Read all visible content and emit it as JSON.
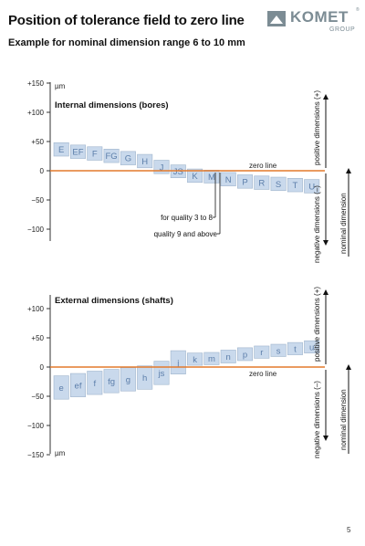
{
  "header": {
    "title": "Position of tolerance field to zero line",
    "subtitle": "Example for nominal dimension range 6 to 10 mm",
    "logo_text": "KOMET",
    "logo_sub": "GROUP",
    "logo_registered": "®"
  },
  "colors": {
    "field_fill": "#c9d9ec",
    "field_stroke": "#9fb4cc",
    "field_letter": "#5c7eaa",
    "zero_line": "#e47a2c",
    "axis": "#333333"
  },
  "top_diagram": {
    "section_title": "Internal dimensions (bores)",
    "unit": "µm",
    "ticks": [
      "+150",
      "+100",
      "+50",
      "0",
      "−50",
      "−100"
    ],
    "tick_values": [
      150,
      100,
      50,
      0,
      -50,
      -100
    ],
    "zero_line_label": "zero line",
    "fields": [
      {
        "letter": "E",
        "hi": 48,
        "lo": 25
      },
      {
        "letter": "EF",
        "hi": 44,
        "lo": 21
      },
      {
        "letter": "F",
        "hi": 41,
        "lo": 18
      },
      {
        "letter": "FG",
        "hi": 37,
        "lo": 14
      },
      {
        "letter": "G",
        "hi": 33,
        "lo": 10
      },
      {
        "letter": "H",
        "hi": 28,
        "lo": 5
      },
      {
        "letter": "J",
        "hi": 18,
        "lo": -5
      },
      {
        "letter": "JS",
        "hi": 10,
        "lo": -12
      },
      {
        "letter": "K",
        "hi": 3,
        "lo": -20
      },
      {
        "letter": "M",
        "hi": 1,
        "lo": -21
      },
      {
        "letter": "N",
        "hi": -3,
        "lo": -26
      },
      {
        "letter": "P",
        "hi": -7,
        "lo": -30
      },
      {
        "letter": "R",
        "hi": -9,
        "lo": -32
      },
      {
        "letter": "S",
        "hi": -11,
        "lo": -34
      },
      {
        "letter": "T",
        "hi": -13,
        "lo": -36
      },
      {
        "letter": "U",
        "hi": -15,
        "lo": -38
      }
    ],
    "quality_labels": [
      "for quality 3 to 8",
      "quality 9 and above"
    ],
    "side_labels": {
      "positive": "positive dimensions (+)",
      "negative": "negative dimensions (–)",
      "nominal": "nominal dimension"
    }
  },
  "bottom_diagram": {
    "section_title": "External dimensions (shafts)",
    "unit": "µm",
    "ticks": [
      "+100",
      "+50",
      "0",
      "−50",
      "−100",
      "−150"
    ],
    "tick_values": [
      100,
      50,
      0,
      -50,
      -100,
      -150
    ],
    "zero_line_label": "zero line",
    "fields": [
      {
        "letter": "e",
        "hi": -15,
        "lo": -55
      },
      {
        "letter": "ef",
        "hi": -11,
        "lo": -51
      },
      {
        "letter": "f",
        "hi": -7,
        "lo": -47
      },
      {
        "letter": "fg",
        "hi": -4,
        "lo": -44
      },
      {
        "letter": "g",
        "hi": -1,
        "lo": -41
      },
      {
        "letter": "h",
        "hi": 2,
        "lo": -38
      },
      {
        "letter": "js",
        "hi": 10,
        "lo": -30
      },
      {
        "letter": "j",
        "hi": 28,
        "lo": -12
      },
      {
        "letter": "k",
        "hi": 24,
        "lo": 3
      },
      {
        "letter": "m",
        "hi": 25,
        "lo": 4
      },
      {
        "letter": "n",
        "hi": 29,
        "lo": 7
      },
      {
        "letter": "p",
        "hi": 33,
        "lo": 11
      },
      {
        "letter": "r",
        "hi": 36,
        "lo": 15
      },
      {
        "letter": "s",
        "hi": 39,
        "lo": 18
      },
      {
        "letter": "t",
        "hi": 42,
        "lo": 21
      },
      {
        "letter": "u",
        "hi": 45,
        "lo": 24
      }
    ],
    "side_labels": {
      "positive": "positive dimensions (+)",
      "negative": "negative dimensions (–)",
      "nominal": "nominal dimension"
    }
  },
  "page_number": "5"
}
